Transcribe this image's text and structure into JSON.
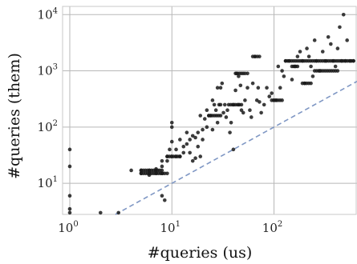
{
  "chart_data": {
    "type": "scatter",
    "title": "",
    "xlabel": "#queries (us)",
    "ylabel": "#queries (them)",
    "xscale": "log",
    "yscale": "log",
    "xlim": [
      0.85,
      650
    ],
    "ylim": [
      2.8,
      14000
    ],
    "grid": true,
    "x_ticks": [
      {
        "base": "10",
        "exp": "0"
      },
      {
        "base": "10",
        "exp": "1"
      },
      {
        "base": "10",
        "exp": "2"
      }
    ],
    "y_ticks": [
      {
        "base": "10",
        "exp": "1"
      },
      {
        "base": "10",
        "exp": "2"
      },
      {
        "base": "10",
        "exp": "3"
      },
      {
        "base": "10",
        "exp": "4"
      }
    ],
    "reference_line": {
      "type": "y=x",
      "style": "dashed",
      "color": "#7f97c4"
    },
    "point_color": "#1a1a1a",
    "points": [
      [
        1,
        3
      ],
      [
        1,
        3.5
      ],
      [
        1,
        6
      ],
      [
        1,
        20
      ],
      [
        1,
        40
      ],
      [
        2,
        3
      ],
      [
        3,
        3
      ],
      [
        4,
        17
      ],
      [
        5,
        15
      ],
      [
        5,
        17
      ],
      [
        6,
        14
      ],
      [
        6,
        15
      ],
      [
        6,
        17
      ],
      [
        7,
        15
      ],
      [
        7,
        17
      ],
      [
        7,
        18
      ],
      [
        8,
        15
      ],
      [
        8,
        20
      ],
      [
        8,
        25
      ],
      [
        8,
        6
      ],
      [
        8.5,
        5
      ],
      [
        9,
        15
      ],
      [
        9,
        25
      ],
      [
        9,
        30
      ],
      [
        9.5,
        40
      ],
      [
        10,
        30
      ],
      [
        10,
        55
      ],
      [
        10,
        100
      ],
      [
        10,
        120
      ],
      [
        11,
        30
      ],
      [
        11,
        40
      ],
      [
        12,
        30
      ],
      [
        12,
        60
      ],
      [
        13,
        35
      ],
      [
        13,
        45
      ],
      [
        14,
        50
      ],
      [
        14,
        80
      ],
      [
        15,
        60
      ],
      [
        15,
        35
      ],
      [
        16,
        70
      ],
      [
        16,
        25
      ],
      [
        17,
        65
      ],
      [
        17,
        28
      ],
      [
        18,
        80
      ],
      [
        18,
        45
      ],
      [
        19,
        30
      ],
      [
        19,
        160
      ],
      [
        20,
        60
      ],
      [
        20,
        90
      ],
      [
        21,
        140
      ],
      [
        22,
        100
      ],
      [
        22,
        200
      ],
      [
        23,
        160
      ],
      [
        24,
        160
      ],
      [
        25,
        90
      ],
      [
        25,
        300
      ],
      [
        26,
        250
      ],
      [
        27,
        200
      ],
      [
        28,
        500
      ],
      [
        28,
        120
      ],
      [
        29,
        250
      ],
      [
        30,
        250
      ],
      [
        30,
        500
      ],
      [
        31,
        600
      ],
      [
        32,
        180
      ],
      [
        33,
        250
      ],
      [
        34,
        150
      ],
      [
        35,
        200
      ],
      [
        37,
        80
      ],
      [
        38,
        120
      ],
      [
        40,
        250
      ],
      [
        40,
        40
      ],
      [
        42,
        450
      ],
      [
        43,
        900
      ],
      [
        45,
        250
      ],
      [
        45,
        800
      ],
      [
        47,
        550
      ],
      [
        48,
        200
      ],
      [
        50,
        180
      ],
      [
        52,
        300
      ],
      [
        55,
        500
      ],
      [
        55,
        900
      ],
      [
        58,
        200
      ],
      [
        60,
        150
      ],
      [
        62,
        600
      ],
      [
        65,
        1800
      ],
      [
        68,
        300
      ],
      [
        70,
        500
      ],
      [
        72,
        280
      ],
      [
        75,
        180
      ],
      [
        80,
        250
      ],
      [
        85,
        500
      ],
      [
        90,
        350
      ],
      [
        95,
        400
      ],
      [
        100,
        300
      ],
      [
        105,
        300
      ],
      [
        110,
        1200
      ],
      [
        115,
        500
      ],
      [
        120,
        1000
      ],
      [
        125,
        800
      ],
      [
        130,
        1500
      ],
      [
        140,
        1500
      ],
      [
        150,
        700
      ],
      [
        160,
        1200
      ],
      [
        170,
        1800
      ],
      [
        180,
        2200
      ],
      [
        190,
        1500
      ],
      [
        200,
        600
      ],
      [
        210,
        2500
      ],
      [
        220,
        1800
      ],
      [
        230,
        1200
      ],
      [
        240,
        800
      ],
      [
        250,
        3500
      ],
      [
        260,
        1500
      ],
      [
        280,
        1000
      ],
      [
        300,
        2200
      ],
      [
        320,
        1500
      ],
      [
        340,
        4000
      ],
      [
        360,
        3000
      ],
      [
        380,
        1500
      ],
      [
        400,
        1200
      ],
      [
        420,
        2500
      ],
      [
        440,
        6000
      ],
      [
        460,
        1500
      ],
      [
        480,
        10000
      ],
      [
        500,
        1500
      ],
      [
        520,
        3500
      ],
      [
        560,
        1500
      ],
      [
        600,
        1500
      ]
    ],
    "flat_runs": [
      {
        "y": 300,
        "x_from": 95,
        "x_to": 120
      },
      {
        "y": 1800,
        "x_from": 62,
        "x_to": 72
      },
      {
        "y": 900,
        "x_from": 42,
        "x_to": 52
      },
      {
        "y": 250,
        "x_from": 36,
        "x_to": 48
      },
      {
        "y": 160,
        "x_from": 23,
        "x_to": 30
      },
      {
        "y": 15,
        "x_from": 5,
        "x_to": 8.5
      },
      {
        "y": 17,
        "x_from": 5,
        "x_to": 8
      },
      {
        "y": 30,
        "x_from": 9,
        "x_to": 12
      },
      {
        "y": 1000,
        "x_from": 250,
        "x_to": 420
      },
      {
        "y": 1500,
        "x_from": 130,
        "x_to": 600
      },
      {
        "y": 600,
        "x_from": 190,
        "x_to": 230
      },
      {
        "y": 1200,
        "x_from": 150,
        "x_to": 170
      }
    ]
  }
}
